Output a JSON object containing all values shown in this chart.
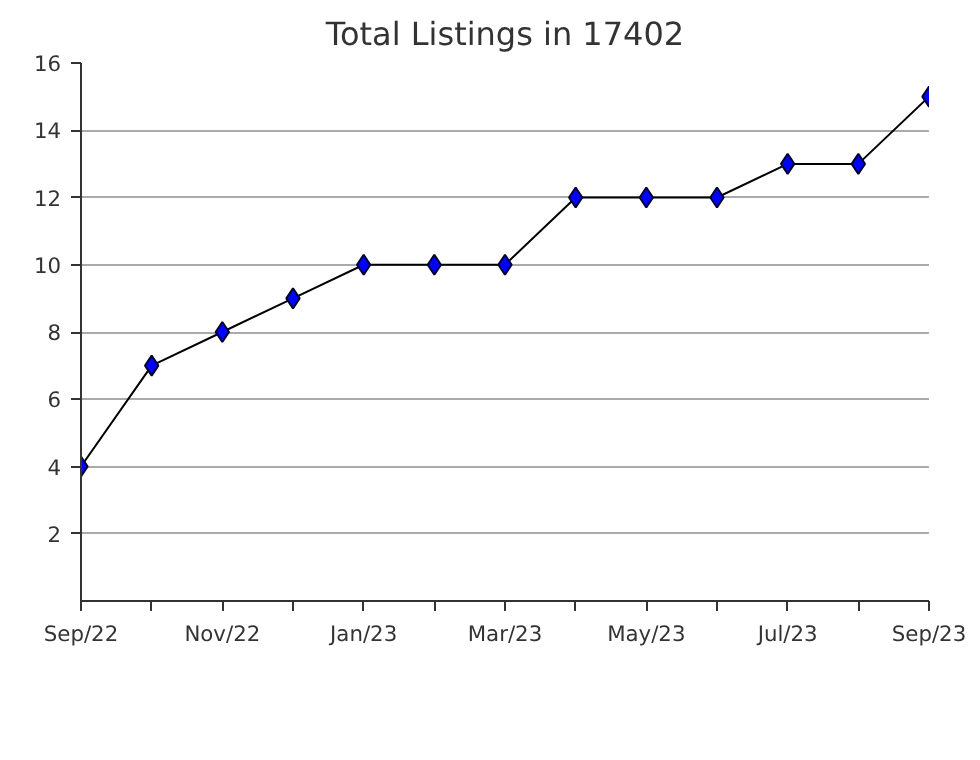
{
  "chart_data": {
    "type": "line",
    "title": "Total Listings in 17402",
    "categories": [
      "Sep/22",
      null,
      "Nov/22",
      null,
      "Jan/23",
      null,
      "Mar/23",
      null,
      "May/23",
      null,
      "Jul/23",
      null,
      "Sep/23"
    ],
    "series": [
      {
        "color": "#0000ff",
        "values": [
          4,
          7,
          8,
          9,
          10,
          10,
          10,
          12,
          12,
          12,
          13,
          13,
          15
        ]
      }
    ],
    "ylim": [
      0,
      16
    ],
    "yticks": [
      2,
      4,
      6,
      8,
      10,
      12,
      14,
      16
    ],
    "grid": "y",
    "marker": "diamond",
    "line_style": "solid"
  }
}
